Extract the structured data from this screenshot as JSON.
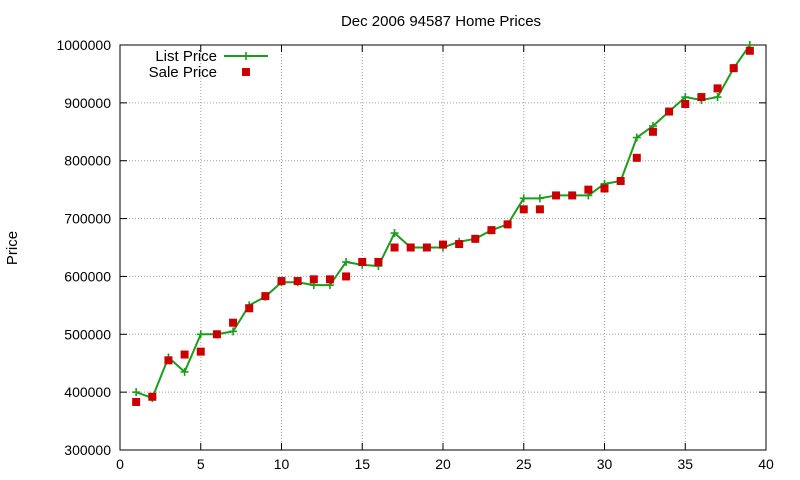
{
  "chart_data": {
    "type": "line",
    "title": "Dec 2006 94587 Home Prices",
    "xlabel": "",
    "ylabel": "Price",
    "xlim": [
      0,
      40
    ],
    "ylim": [
      300000,
      1000000
    ],
    "x_ticks": [
      0,
      5,
      10,
      15,
      20,
      25,
      30,
      35,
      40
    ],
    "y_ticks": [
      300000,
      400000,
      500000,
      600000,
      700000,
      800000,
      900000,
      1000000
    ],
    "grid": true,
    "legend_position": "top-left",
    "series": [
      {
        "name": "List Price",
        "style": "line-with-plus-markers",
        "color": "#1a9e1a",
        "x": [
          1,
          2,
          3,
          4,
          5,
          6,
          7,
          8,
          9,
          10,
          11,
          12,
          13,
          14,
          15,
          16,
          17,
          18,
          19,
          20,
          21,
          22,
          23,
          24,
          25,
          26,
          27,
          28,
          29,
          30,
          31,
          32,
          33,
          34,
          35,
          36,
          37,
          38,
          39
        ],
        "values": [
          400000,
          390000,
          460000,
          435000,
          500000,
          500000,
          505000,
          550000,
          565000,
          590000,
          590000,
          585000,
          585000,
          625000,
          620000,
          618000,
          675000,
          650000,
          650000,
          650000,
          660000,
          665000,
          680000,
          690000,
          735000,
          735000,
          740000,
          740000,
          740000,
          760000,
          765000,
          840000,
          860000,
          885000,
          910000,
          905000,
          910000,
          960000,
          1000000
        ]
      },
      {
        "name": "Sale Price",
        "style": "square-markers",
        "color": "#cc0000",
        "x": [
          1,
          2,
          3,
          4,
          5,
          6,
          7,
          8,
          9,
          10,
          11,
          12,
          13,
          14,
          15,
          16,
          17,
          18,
          19,
          20,
          21,
          22,
          23,
          24,
          25,
          26,
          27,
          28,
          29,
          30,
          31,
          32,
          33,
          34,
          35,
          36,
          37,
          38,
          39
        ],
        "values": [
          383000,
          392000,
          455000,
          465000,
          470000,
          500000,
          520000,
          545000,
          566000,
          592000,
          592000,
          595000,
          595000,
          600000,
          625000,
          625000,
          650000,
          650000,
          650000,
          655000,
          656000,
          665000,
          680000,
          690000,
          716000,
          716000,
          740000,
          740000,
          750000,
          752000,
          765000,
          805000,
          850000,
          885000,
          898000,
          910000,
          925000,
          960000,
          990000
        ]
      }
    ]
  }
}
